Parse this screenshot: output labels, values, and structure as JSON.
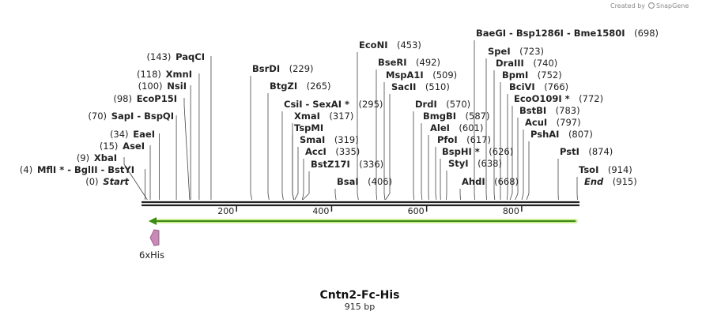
{
  "credit": {
    "prefix": "Created by",
    "brand": "SnapGene"
  },
  "map": {
    "name": "Cntn2-Fc-His",
    "length_label": "915 bp",
    "total_bp": 915,
    "ticks": [
      200,
      400,
      600,
      800
    ],
    "feature": {
      "name": "6xHis"
    },
    "sites": [
      {
        "name": "MflI *",
        "extra": [
          "BglII",
          "BstYI"
        ],
        "pos": "(4)",
        "bp": 4
      },
      {
        "name": "Start",
        "pos": "(0)",
        "bp": 0,
        "italic": true
      },
      {
        "name": "XbaI",
        "pos": "(9)",
        "bp": 9
      },
      {
        "name": "AseI",
        "pos": "(15)",
        "bp": 15
      },
      {
        "name": "EaeI",
        "pos": "(34)",
        "bp": 34
      },
      {
        "name": "SapI",
        "extra": [
          "BspQI"
        ],
        "pos": "(70)",
        "bp": 70
      },
      {
        "name": "EcoP15I",
        "pos": "(98)",
        "bp": 98
      },
      {
        "name": "NsiI",
        "pos": "(100)",
        "bp": 100
      },
      {
        "name": "XmnI",
        "pos": "(118)",
        "bp": 118
      },
      {
        "name": "PaqCI",
        "pos": "(143)",
        "bp": 143
      },
      {
        "name": "BsrDI",
        "pos": "(229)",
        "bp": 229
      },
      {
        "name": "BtgZI",
        "pos": "(265)",
        "bp": 265
      },
      {
        "name": "CsiI",
        "extra": [
          "SexAI *"
        ],
        "pos": "(295)",
        "bp": 295
      },
      {
        "name": "XmaI",
        "pos": "(317)",
        "bp": 317
      },
      {
        "name": "TspMI",
        "pos": "",
        "bp": 317
      },
      {
        "name": "SmaI",
        "pos": "(319)",
        "bp": 319
      },
      {
        "name": "AccI",
        "pos": "(335)",
        "bp": 335
      },
      {
        "name": "BstZ17I",
        "pos": "(336)",
        "bp": 336
      },
      {
        "name": "BsaI",
        "pos": "(406)",
        "bp": 406
      },
      {
        "name": "EcoNI",
        "pos": "(453)",
        "bp": 453
      },
      {
        "name": "BseRI",
        "pos": "(492)",
        "bp": 492
      },
      {
        "name": "MspA1I",
        "pos": "(509)",
        "bp": 509
      },
      {
        "name": "SacII",
        "pos": "(510)",
        "bp": 510
      },
      {
        "name": "DrdI",
        "pos": "(570)",
        "bp": 570
      },
      {
        "name": "BmgBI",
        "pos": "(587)",
        "bp": 587
      },
      {
        "name": "AleI",
        "pos": "(601)",
        "bp": 601
      },
      {
        "name": "PfoI",
        "pos": "(617)",
        "bp": 617
      },
      {
        "name": "BspHI *",
        "pos": "(626)",
        "bp": 626
      },
      {
        "name": "StyI",
        "pos": "(638)",
        "bp": 638
      },
      {
        "name": "AhdI",
        "pos": "(668)",
        "bp": 668
      },
      {
        "name": "BaeGI",
        "extra": [
          "Bsp1286I",
          "Bme1580I"
        ],
        "pos": "(698)",
        "bp": 698
      },
      {
        "name": "SpeI",
        "pos": "(723)",
        "bp": 723
      },
      {
        "name": "DraIII",
        "pos": "(740)",
        "bp": 740
      },
      {
        "name": "BpmI",
        "pos": "(752)",
        "bp": 752
      },
      {
        "name": "BciVI",
        "pos": "(766)",
        "bp": 766
      },
      {
        "name": "EcoO109I *",
        "pos": "(772)",
        "bp": 772
      },
      {
        "name": "BstBI",
        "pos": "(783)",
        "bp": 783
      },
      {
        "name": "AcuI",
        "pos": "(797)",
        "bp": 797
      },
      {
        "name": "PshAI",
        "pos": "(807)",
        "bp": 807
      },
      {
        "name": "PstI",
        "pos": "(874)",
        "bp": 874
      },
      {
        "name": "TsoI",
        "pos": "(914)",
        "bp": 914
      },
      {
        "name": "End",
        "pos": "(915)",
        "bp": 915,
        "italic": true
      }
    ]
  }
}
